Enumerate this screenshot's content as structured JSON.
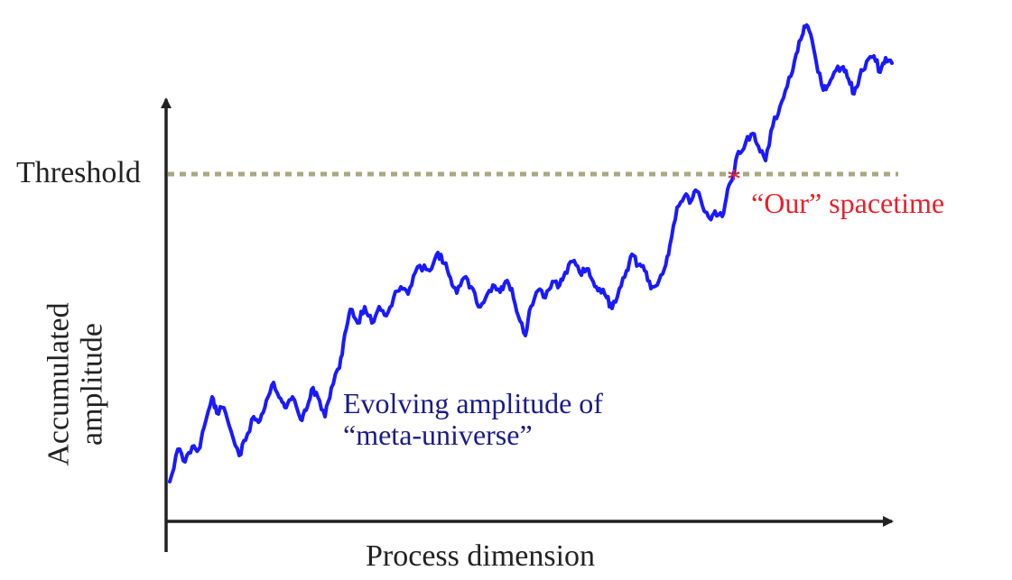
{
  "labels": {
    "threshold": "Threshold",
    "x_axis": "Process dimension",
    "y_axis_line1": "Accumulated",
    "y_axis_line2": "amplitude",
    "curve_line1": "Evolving amplitude of",
    "curve_line2": "“meta-universe”",
    "crossing_marker": "*",
    "crossing_label": "“Our” spacetime"
  },
  "colors": {
    "axis": "#222222",
    "curve": "#1a1aff",
    "threshold_line": "#a8a882",
    "curve_label": "#1a1a8c",
    "crossing": "#e8202a"
  }
}
